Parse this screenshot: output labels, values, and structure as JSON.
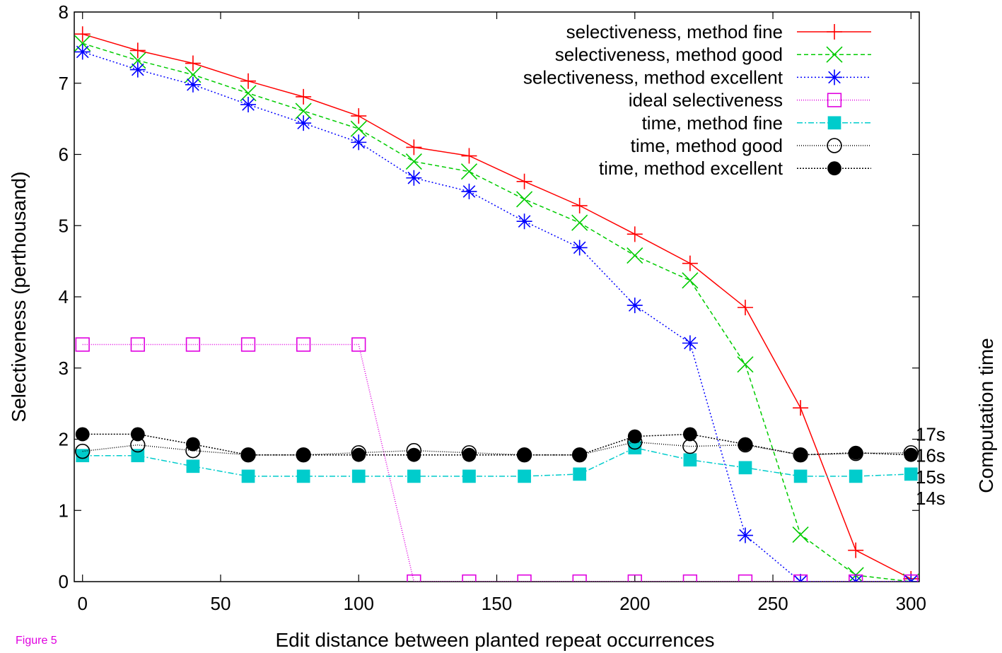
{
  "figure_label": "Figure 5",
  "chart_data": {
    "type": "line",
    "xlabel": "Edit distance between planted repeat occurrences",
    "ylabel": "Selectiveness (perthousand)",
    "y2label": "Computation time",
    "xlim": [
      -3,
      303
    ],
    "ylim": [
      0,
      8
    ],
    "xticks": [
      0,
      50,
      100,
      150,
      200,
      250,
      300
    ],
    "yticks": [
      0,
      1,
      2,
      3,
      4,
      5,
      6,
      7,
      8
    ],
    "y2ticks": [
      {
        "label": "17s",
        "value": 2.07
      },
      {
        "label": "16s",
        "value": 1.77
      },
      {
        "label": "15s",
        "value": 1.47
      },
      {
        "label": "14s",
        "value": 1.17
      }
    ],
    "grid": false,
    "legend_position": "top-right",
    "x": [
      0,
      20,
      40,
      60,
      80,
      100,
      120,
      140,
      160,
      180,
      200,
      220,
      240,
      260,
      280,
      300
    ],
    "series": [
      {
        "name": "selectiveness, method fine",
        "color": "#ff0000",
        "marker": "plus",
        "dash": "",
        "values": [
          7.69,
          7.46,
          7.28,
          7.03,
          6.81,
          6.54,
          6.1,
          5.98,
          5.62,
          5.28,
          4.88,
          4.47,
          3.85,
          2.44,
          0.44,
          0.04
        ]
      },
      {
        "name": "selectiveness, method good",
        "color": "#00cc00",
        "marker": "cross",
        "dash": "6,4",
        "values": [
          7.56,
          7.32,
          7.12,
          6.86,
          6.61,
          6.36,
          5.9,
          5.76,
          5.37,
          5.04,
          4.58,
          4.23,
          3.05,
          0.66,
          0.09,
          0.0
        ]
      },
      {
        "name": "selectiveness, method excellent",
        "color": "#0000ff",
        "marker": "star",
        "dash": "2,3",
        "values": [
          7.44,
          7.19,
          6.98,
          6.7,
          6.44,
          6.17,
          5.67,
          5.48,
          5.06,
          4.69,
          3.88,
          3.35,
          0.65,
          0.0,
          0.0,
          0.0
        ]
      },
      {
        "name": "ideal selectiveness",
        "color": "#e000e0",
        "marker": "square-open",
        "dash": "1,2",
        "values": [
          3.33,
          3.33,
          3.33,
          3.33,
          3.33,
          3.33,
          0.0,
          0.0,
          0.0,
          0.0,
          0.0,
          0.0,
          0.0,
          0.0,
          0.0,
          0.0
        ]
      },
      {
        "name": "time, method fine",
        "color": "#00cccc",
        "marker": "square-filled",
        "dash": "8,3,2,3",
        "values": [
          1.77,
          1.77,
          1.62,
          1.48,
          1.48,
          1.48,
          1.48,
          1.48,
          1.48,
          1.51,
          1.88,
          1.71,
          1.6,
          1.48,
          1.48,
          1.51
        ]
      },
      {
        "name": "time, method good",
        "color": "#000000",
        "marker": "circle-open",
        "dash": "1,2",
        "values": [
          1.83,
          1.92,
          1.84,
          1.78,
          1.78,
          1.81,
          1.84,
          1.81,
          1.78,
          1.78,
          1.96,
          1.9,
          1.92,
          1.78,
          1.8,
          1.81
        ]
      },
      {
        "name": "time, method excellent",
        "color": "#000000",
        "marker": "circle-filled",
        "dash": "2,2",
        "values": [
          2.07,
          2.07,
          1.93,
          1.78,
          1.78,
          1.78,
          1.78,
          1.78,
          1.78,
          1.78,
          2.04,
          2.07,
          1.93,
          1.78,
          1.81,
          1.78
        ]
      }
    ]
  }
}
